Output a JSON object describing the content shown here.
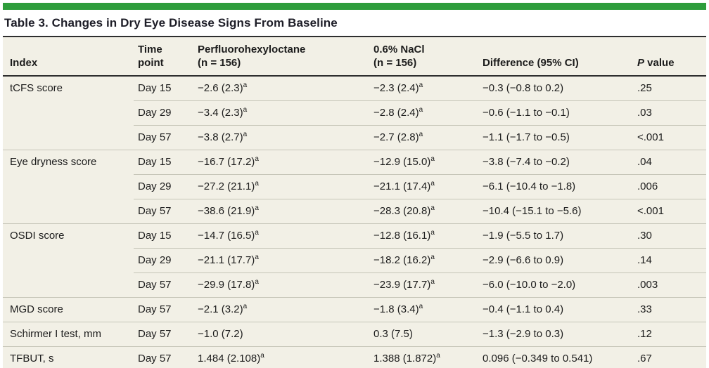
{
  "colors": {
    "accent_green": "#2e9d3c",
    "table_background": "#f2f0e6",
    "dark_rule": "#2e2e2e",
    "light_rule": "#c6c5b8"
  },
  "table": {
    "title": "Table 3. Changes in Dry Eye Disease Signs From Baseline",
    "footnote_marker": "a",
    "header": {
      "index": "Index",
      "time": {
        "l1": "Time",
        "l2": "point"
      },
      "pfho": {
        "l1": "Perfluorohexyloctane",
        "l2": "(n = 156)"
      },
      "nacl": {
        "l1": "0.6% NaCl",
        "l2": "(n = 156)"
      },
      "diff": "Difference (95% CI)",
      "p": {
        "italic": "P",
        "rest": " value"
      }
    },
    "rows": [
      {
        "index": "tCFS score",
        "time": "Day 15",
        "pfho": {
          "v": "−2.6 (2.3)",
          "sup": "a"
        },
        "nacl": {
          "v": "−2.3 (2.4)",
          "sup": "a"
        },
        "diff": "−0.3 (−0.8 to 0.2)",
        "p": ".25"
      },
      {
        "index": "",
        "time": "Day 29",
        "pfho": {
          "v": "−3.4 (2.3)",
          "sup": "a"
        },
        "nacl": {
          "v": "−2.8 (2.4)",
          "sup": "a"
        },
        "diff": "−0.6 (−1.1 to −0.1)",
        "p": ".03"
      },
      {
        "index": "",
        "time": "Day 57",
        "pfho": {
          "v": "−3.8 (2.7)",
          "sup": "a"
        },
        "nacl": {
          "v": "−2.7 (2.8)",
          "sup": "a"
        },
        "diff": "−1.1 (−1.7 to −0.5)",
        "p": "<.001"
      },
      {
        "index": "Eye dryness score",
        "time": "Day 15",
        "pfho": {
          "v": "−16.7 (17.2)",
          "sup": "a"
        },
        "nacl": {
          "v": "−12.9 (15.0)",
          "sup": "a"
        },
        "diff": "−3.8 (−7.4 to −0.2)",
        "p": ".04"
      },
      {
        "index": "",
        "time": "Day 29",
        "pfho": {
          "v": "−27.2 (21.1)",
          "sup": "a"
        },
        "nacl": {
          "v": "−21.1 (17.4)",
          "sup": "a"
        },
        "diff": "−6.1 (−10.4 to −1.8)",
        "p": ".006"
      },
      {
        "index": "",
        "time": "Day 57",
        "pfho": {
          "v": "−38.6 (21.9)",
          "sup": "a"
        },
        "nacl": {
          "v": "−28.3 (20.8)",
          "sup": "a"
        },
        "diff": "−10.4 (−15.1 to −5.6)",
        "p": "<.001"
      },
      {
        "index": "OSDI score",
        "time": "Day 15",
        "pfho": {
          "v": "−14.7 (16.5)",
          "sup": "a"
        },
        "nacl": {
          "v": "−12.8 (16.1)",
          "sup": "a"
        },
        "diff": "−1.9 (−5.5 to 1.7)",
        "p": ".30"
      },
      {
        "index": "",
        "time": "Day 29",
        "pfho": {
          "v": "−21.1 (17.7)",
          "sup": "a"
        },
        "nacl": {
          "v": "−18.2 (16.2)",
          "sup": "a"
        },
        "diff": "−2.9 (−6.6 to 0.9)",
        "p": ".14"
      },
      {
        "index": "",
        "time": "Day 57",
        "pfho": {
          "v": "−29.9 (17.8)",
          "sup": "a"
        },
        "nacl": {
          "v": "−23.9 (17.7)",
          "sup": "a"
        },
        "diff": "−6.0 (−10.0 to −2.0)",
        "p": ".003"
      },
      {
        "index": "MGD score",
        "time": "Day 57",
        "pfho": {
          "v": "−2.1 (3.2)",
          "sup": "a"
        },
        "nacl": {
          "v": "−1.8 (3.4)",
          "sup": "a"
        },
        "diff": "−0.4 (−1.1 to 0.4)",
        "p": ".33"
      },
      {
        "index": "Schirmer I test, mm",
        "time": "Day 57",
        "pfho": {
          "v": "−1.0 (7.2)",
          "sup": ""
        },
        "nacl": {
          "v": "0.3 (7.5)",
          "sup": ""
        },
        "diff": "−1.3 (−2.9 to 0.3)",
        "p": ".12"
      },
      {
        "index": "TFBUT, s",
        "time": "Day 57",
        "pfho": {
          "v": "1.484 (2.108)",
          "sup": "a"
        },
        "nacl": {
          "v": "1.388 (1.872)",
          "sup": "a"
        },
        "diff": "0.096 (−0.349 to 0.541)",
        "p": ".67"
      }
    ]
  }
}
